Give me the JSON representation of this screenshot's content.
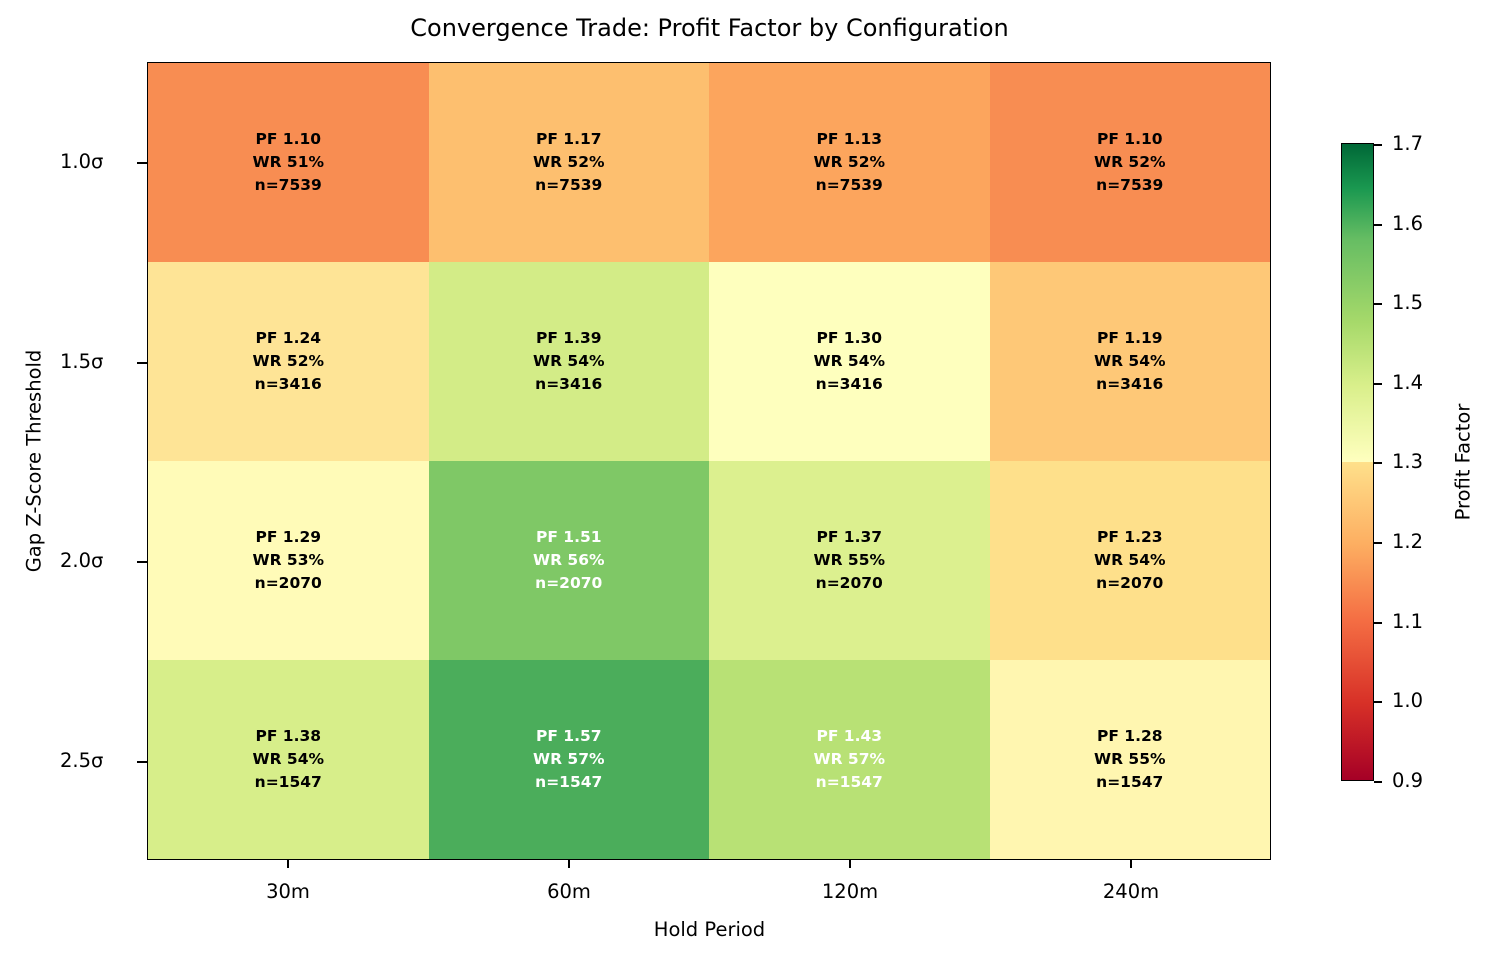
{
  "chart_data": {
    "type": "heatmap",
    "title": "Convergence Trade: Profit Factor by Configuration",
    "xlabel": "Hold Period",
    "ylabel": "Gap Z-Score Threshold",
    "x_categories": [
      "30m",
      "60m",
      "120m",
      "240m"
    ],
    "y_categories": [
      "1.0σ",
      "1.5σ",
      "2.0σ",
      "2.5σ"
    ],
    "colorbar": {
      "label": "Profit Factor",
      "colormap": "RdYlGn",
      "range": [
        0.9,
        1.7
      ],
      "ticks": [
        "1.7",
        "1.6",
        "1.5",
        "1.4",
        "1.3",
        "1.2",
        "1.1",
        "1.0",
        "0.9"
      ]
    },
    "rows": [
      [
        {
          "pf": "PF 1.10",
          "wr": "WR 51%",
          "n": "n=7539",
          "color": "#f88d52",
          "text": "#000000"
        },
        {
          "pf": "PF 1.17",
          "wr": "WR 52%",
          "n": "n=7539",
          "color": "#fdbf6f",
          "text": "#000000"
        },
        {
          "pf": "PF 1.13",
          "wr": "WR 52%",
          "n": "n=7539",
          "color": "#fca55d",
          "text": "#000000"
        },
        {
          "pf": "PF 1.10",
          "wr": "WR 52%",
          "n": "n=7539",
          "color": "#f88d52",
          "text": "#000000"
        }
      ],
      [
        {
          "pf": "PF 1.24",
          "wr": "WR 52%",
          "n": "n=3416",
          "color": "#fee496",
          "text": "#000000"
        },
        {
          "pf": "PF 1.39",
          "wr": "WR 54%",
          "n": "n=3416",
          "color": "#d3ec87",
          "text": "#000000"
        },
        {
          "pf": "PF 1.30",
          "wr": "WR 54%",
          "n": "n=3416",
          "color": "#feffbe",
          "text": "#000000"
        },
        {
          "pf": "PF 1.19",
          "wr": "WR 54%",
          "n": "n=3416",
          "color": "#fec877",
          "text": "#000000"
        }
      ],
      [
        {
          "pf": "PF 1.29",
          "wr": "WR 53%",
          "n": "n=2070",
          "color": "#fffbb8",
          "text": "#000000"
        },
        {
          "pf": "PF 1.51",
          "wr": "WR 56%",
          "n": "n=2070",
          "color": "#7fc866",
          "text": "#ffffff"
        },
        {
          "pf": "PF 1.37",
          "wr": "WR 55%",
          "n": "n=2070",
          "color": "#dcf08f",
          "text": "#000000"
        },
        {
          "pf": "PF 1.23",
          "wr": "WR 54%",
          "n": "n=2070",
          "color": "#fee08b",
          "text": "#000000"
        }
      ],
      [
        {
          "pf": "PF 1.38",
          "wr": "WR 54%",
          "n": "n=1547",
          "color": "#d7ee8a",
          "text": "#000000"
        },
        {
          "pf": "PF 1.57",
          "wr": "WR 57%",
          "n": "n=1547",
          "color": "#4bad5b",
          "text": "#ffffff"
        },
        {
          "pf": "PF 1.43",
          "wr": "WR 57%",
          "n": "n=1547",
          "color": "#b8e175",
          "text": "#ffffff"
        },
        {
          "pf": "PF 1.28",
          "wr": "WR 55%",
          "n": "n=1547",
          "color": "#fff6b0",
          "text": "#000000"
        }
      ]
    ],
    "pf_values": [
      [
        1.1,
        1.17,
        1.13,
        1.1
      ],
      [
        1.24,
        1.39,
        1.3,
        1.19
      ],
      [
        1.29,
        1.51,
        1.37,
        1.23
      ],
      [
        1.38,
        1.57,
        1.43,
        1.28
      ]
    ],
    "win_rates_pct": [
      [
        51,
        52,
        52,
        52
      ],
      [
        52,
        54,
        54,
        54
      ],
      [
        53,
        56,
        55,
        54
      ],
      [
        54,
        57,
        57,
        55
      ]
    ],
    "n_trades": [
      7539,
      3416,
      2070,
      1547
    ]
  }
}
